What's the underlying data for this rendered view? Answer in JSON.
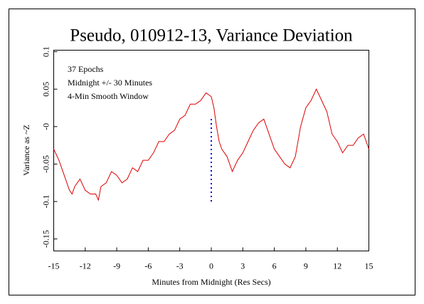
{
  "chart_data": {
    "type": "line",
    "title": "Pseudo, 010912-13, Variance Deviation",
    "x_label": "Minutes from Midnight (Res Secs)",
    "y_label": "Variance as ~Z",
    "annotations": [
      "37 Epochs",
      "Midnight +/- 30 Minutes",
      "4-Min Smooth Window"
    ],
    "annotation_color": "#dd0000",
    "x": [
      -15,
      -14.5,
      -14,
      -13.5,
      -13.25,
      -13,
      -12.5,
      -12,
      -11.5,
      -11,
      -10.75,
      -10.5,
      -10,
      -9.5,
      -9,
      -8.5,
      -8,
      -7.5,
      -7,
      -6.5,
      -6,
      -5.5,
      -5,
      -4.5,
      -4,
      -3.5,
      -3,
      -2.5,
      -2,
      -1.5,
      -1,
      -0.5,
      0,
      0.25,
      0.5,
      0.75,
      1,
      1.5,
      2,
      2.5,
      3,
      3.5,
      4,
      4.5,
      5,
      5.5,
      6,
      6.5,
      7,
      7.5,
      8,
      8.5,
      9,
      9.5,
      10,
      10.5,
      11,
      11.5,
      12,
      12.5,
      13,
      13.5,
      14,
      14.5,
      15
    ],
    "series": [
      {
        "name": "Variance",
        "color": "#dd0000",
        "values": [
          -0.03,
          -0.045,
          -0.065,
          -0.085,
          -0.09,
          -0.08,
          -0.07,
          -0.085,
          -0.09,
          -0.09,
          -0.098,
          -0.08,
          -0.075,
          -0.06,
          -0.065,
          -0.075,
          -0.07,
          -0.055,
          -0.06,
          -0.045,
          -0.045,
          -0.035,
          -0.02,
          -0.02,
          -0.01,
          -0.005,
          0.01,
          0.015,
          0.03,
          0.03,
          0.035,
          0.045,
          0.04,
          0.025,
          0.0,
          -0.02,
          -0.03,
          -0.04,
          -0.06,
          -0.045,
          -0.035,
          -0.02,
          -0.005,
          0.005,
          0.01,
          -0.01,
          -0.03,
          -0.04,
          -0.05,
          -0.055,
          -0.04,
          0.0,
          0.025,
          0.035,
          0.05,
          0.035,
          0.02,
          -0.01,
          -0.02,
          -0.035,
          -0.025,
          -0.025,
          -0.015,
          -0.01,
          -0.03
        ]
      }
    ],
    "vline": {
      "x": 0,
      "ymin": -0.1,
      "ymax": 0.012,
      "color": "#0000ee"
    },
    "xlim": [
      -15,
      15
    ],
    "xticks": [
      -15,
      -12,
      -9,
      -6,
      -3,
      0,
      3,
      6,
      9,
      12,
      15
    ],
    "ylim": [
      -0.166,
      0.102
    ],
    "yticks": [
      {
        "value": 0.1,
        "label": "0.1"
      },
      {
        "value": 0.05,
        "label": "0.05"
      },
      {
        "value": 0,
        "label": "-0"
      },
      {
        "value": -0.05,
        "label": "-0.05"
      },
      {
        "value": -0.1,
        "label": "-0.1"
      },
      {
        "value": -0.15,
        "label": "-0.15"
      }
    ]
  }
}
